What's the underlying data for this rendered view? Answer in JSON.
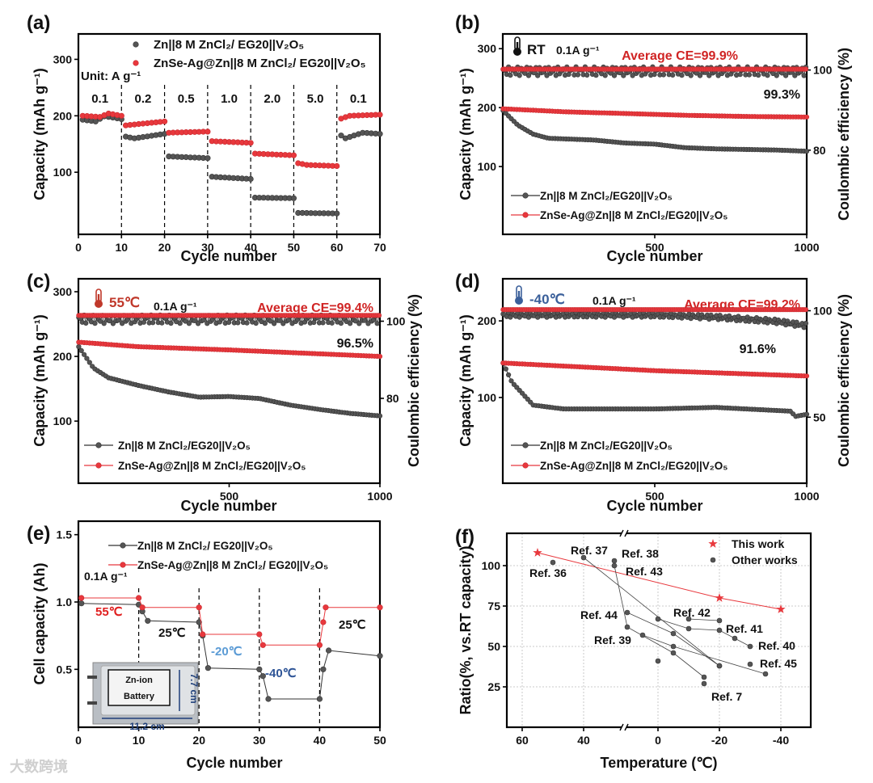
{
  "watermark": "大数跨境",
  "chart_data": [
    {
      "id": "a",
      "type": "scatter",
      "panel_label": "(a)",
      "xlabel": "Cycle number",
      "ylabel": "Capacity (mAh g⁻¹)",
      "xlim": [
        0,
        70
      ],
      "ylim": [
        -10,
        345
      ],
      "xticks": [
        0,
        10,
        20,
        30,
        40,
        50,
        60,
        70
      ],
      "yticks": [
        100,
        200,
        300
      ],
      "legend": "top",
      "unit_label": "Unit: A g⁻¹",
      "rate_labels": [
        "0.1",
        "0.2",
        "0.5",
        "1.0",
        "2.0",
        "5.0",
        "0.1"
      ],
      "rate_boundaries": [
        10,
        20,
        30,
        40,
        50,
        60
      ],
      "series": [
        {
          "name": "Zn||8 M ZnCl₂/ EG20||V₂O₅",
          "color": "#555555",
          "x": [
            1,
            4,
            6,
            8,
            10,
            11,
            13,
            20,
            21,
            30,
            31,
            40,
            41,
            50,
            51,
            60,
            61,
            62,
            66,
            70
          ],
          "y": [
            193,
            190,
            199,
            197,
            194,
            163,
            160,
            168,
            128,
            125,
            92,
            88,
            55,
            54,
            28,
            27,
            165,
            160,
            170,
            168
          ]
        },
        {
          "name": "ZnSe-Ag@Zn||8 M ZnCl₂/ EG20||V₂O₅",
          "color": "#e8383d",
          "x": [
            1,
            5,
            7,
            10,
            11,
            20,
            21,
            30,
            31,
            40,
            41,
            50,
            51,
            53,
            60,
            61,
            63,
            70
          ],
          "y": [
            200,
            198,
            204,
            200,
            183,
            190,
            170,
            172,
            155,
            152,
            133,
            130,
            116,
            113,
            111,
            195,
            200,
            202
          ]
        }
      ]
    },
    {
      "id": "b",
      "type": "scatter",
      "panel_label": "(b)",
      "xlabel": "Cycle number",
      "ylabel": "Capacity (mAh g⁻¹)",
      "y2label": "Coulombic efficiency (%)",
      "xlim": [
        0,
        1000
      ],
      "ylim": [
        -15,
        325
      ],
      "y2lim": [
        59,
        109
      ],
      "xticks": [
        500,
        1000
      ],
      "yticks": [
        100,
        200,
        300
      ],
      "y2ticks": [
        80,
        100
      ],
      "legend": "bottom-left",
      "temperature": "RT",
      "rate": "0.1A g⁻¹",
      "average_ce": "Average CE=99.9%",
      "retention": "99.3%",
      "series": [
        {
          "name": "Zn||8 M ZnCl₂/EG20||V₂O₅",
          "color": "#555555",
          "axis": "left",
          "x": [
            1,
            50,
            100,
            150,
            200,
            300,
            400,
            500,
            600,
            700,
            800,
            900,
            1000
          ],
          "y": [
            195,
            170,
            155,
            148,
            147,
            145,
            140,
            138,
            132,
            130,
            129,
            128,
            126
          ]
        },
        {
          "name": "ZnSe-Ag@Zn||8 M ZnCl₂/EG20||V₂O₅",
          "color": "#e8383d",
          "axis": "left",
          "x": [
            1,
            200,
            400,
            600,
            800,
            1000
          ],
          "y": [
            198,
            193,
            190,
            187,
            185,
            184
          ]
        },
        {
          "name": "CE gray",
          "color": "#555555",
          "axis": "right",
          "ce": true,
          "x": [
            1,
            1000
          ],
          "y": [
            99.7,
            99.7
          ]
        },
        {
          "name": "CE red",
          "color": "#e8383d",
          "axis": "right",
          "ce": true,
          "x": [
            1,
            1000
          ],
          "y": [
            100.2,
            100.2
          ]
        }
      ]
    },
    {
      "id": "c",
      "type": "scatter",
      "panel_label": "(c)",
      "xlabel": "Cycle number",
      "ylabel": "Capacity (mAh g⁻¹)",
      "y2label": "Coulombic efficiency (%)",
      "xlim": [
        0,
        1000
      ],
      "ylim": [
        4,
        320
      ],
      "y2lim": [
        58,
        111
      ],
      "xticks": [
        500,
        1000
      ],
      "yticks": [
        100,
        200,
        300
      ],
      "y2ticks": [
        80,
        100
      ],
      "legend": "bottom-left",
      "temperature": "55℃",
      "rate": "0.1A g⁻¹",
      "average_ce": "Average CE=99.4%",
      "retention": "96.5%",
      "series": [
        {
          "name": "Zn||8 M ZnCl₂/EG20||V₂O₅",
          "color": "#555555",
          "axis": "left",
          "x": [
            1,
            50,
            100,
            200,
            300,
            400,
            500,
            600,
            700,
            800,
            900,
            1000
          ],
          "y": [
            215,
            182,
            167,
            155,
            145,
            137,
            138,
            135,
            125,
            118,
            112,
            108
          ]
        },
        {
          "name": "ZnSe-Ag@Zn||8 M ZnCl₂/EG20||V₂O₅",
          "color": "#e8383d",
          "axis": "left",
          "x": [
            1,
            200,
            500,
            800,
            1000
          ],
          "y": [
            222,
            215,
            210,
            204,
            200
          ]
        },
        {
          "name": "CE gray",
          "color": "#555555",
          "axis": "right",
          "ce": true,
          "x": [
            1,
            1000
          ],
          "y": [
            100.5,
            100.5
          ]
        },
        {
          "name": "CE red",
          "color": "#e8383d",
          "axis": "right",
          "ce": true,
          "x": [
            1,
            1000
          ],
          "y": [
            101.5,
            101.5
          ]
        }
      ]
    },
    {
      "id": "d",
      "type": "scatter",
      "panel_label": "(d)",
      "xlabel": "Cycle number",
      "ylabel": "Capacity (mAh g⁻¹)",
      "y2label": "Coulombic efficiency (%)",
      "xlim": [
        0,
        1000
      ],
      "ylim": [
        -12,
        255
      ],
      "y2lim": [
        19,
        115
      ],
      "xticks": [
        500,
        1000
      ],
      "yticks": [
        100,
        200
      ],
      "y2ticks": [
        50,
        100
      ],
      "legend": "bottom-left",
      "temperature": "-40℃",
      "rate": "0.1A g⁻¹",
      "average_ce": "Average CE=99.2%",
      "retention": "91.6%",
      "series": [
        {
          "name": "Zn||8 M ZnCl₂/EG20||V₂O₅",
          "color": "#555555",
          "axis": "left",
          "x": [
            1,
            30,
            100,
            200,
            500,
            700,
            900,
            950,
            960,
            1000
          ],
          "y": [
            145,
            120,
            90,
            85,
            85,
            87,
            83,
            82,
            75,
            78
          ]
        },
        {
          "name": "ZnSe-Ag@Zn||8 M ZnCl₂/EG20||V₂O₅",
          "color": "#e8383d",
          "axis": "left",
          "x": [
            1,
            500,
            1000
          ],
          "y": [
            145,
            135,
            128
          ]
        },
        {
          "name": "CE gray",
          "color": "#555555",
          "axis": "right",
          "ce": true,
          "x": [
            1,
            500,
            700,
            900,
            1000
          ],
          "y": [
            98,
            98,
            97,
            95,
            93
          ]
        },
        {
          "name": "CE red",
          "color": "#e8383d",
          "axis": "right",
          "ce": true,
          "x": [
            1,
            1000
          ],
          "y": [
            100.5,
            100.5
          ]
        }
      ]
    },
    {
      "id": "e",
      "type": "line",
      "panel_label": "(e)",
      "xlabel": "Cycle number",
      "ylabel": "Cell capacity (Ah)",
      "xlim": [
        0,
        50
      ],
      "ylim": [
        0.07,
        1.6
      ],
      "xticks": [
        0,
        10,
        20,
        30,
        40,
        50
      ],
      "yticks": [
        0.5,
        1.0,
        1.5
      ],
      "legend": "top",
      "rate": "0.1A g⁻¹",
      "boundaries": [
        10,
        20,
        30,
        40
      ],
      "temperature_labels": [
        {
          "text": "55℃",
          "color": "#e02020"
        },
        {
          "text": "25℃",
          "color": "#111111"
        },
        {
          "text": "-20℃",
          "color": "#5b9bd5"
        },
        {
          "text": "-40℃",
          "color": "#2f5597"
        },
        {
          "text": "25℃",
          "color": "#111111"
        }
      ],
      "inset": {
        "label": "Zn-ion Battery",
        "width": "11.2 cm",
        "height": "7.7 cm"
      },
      "series": [
        {
          "name": "Zn||8 M ZnCl₂/ EG20||V₂O₅",
          "color": "#555555",
          "x": [
            0.5,
            10,
            10.6,
            11.5,
            20,
            20.6,
            21.5,
            30,
            30.6,
            31.5,
            40,
            40.6,
            41.5,
            50
          ],
          "y": [
            0.99,
            0.98,
            0.93,
            0.86,
            0.85,
            0.75,
            0.51,
            0.5,
            0.45,
            0.28,
            0.28,
            0.5,
            0.64,
            0.6
          ]
        },
        {
          "name": "ZnSe-Ag@Zn||8 M ZnCl₂/ EG20||V₂O₅",
          "color": "#e8383d",
          "x": [
            0.5,
            10,
            10.6,
            20,
            20.6,
            30,
            30.6,
            40,
            40.6,
            41,
            50
          ],
          "y": [
            1.03,
            1.03,
            0.96,
            0.96,
            0.76,
            0.76,
            0.68,
            0.68,
            0.85,
            0.96,
            0.96
          ]
        }
      ]
    },
    {
      "id": "f",
      "type": "scatter",
      "panel_label": "(f)",
      "xlabel": "Temperature (℃)",
      "ylabel": "Ratio(%, vs.RT capacity)",
      "xlim": [
        65,
        -50
      ],
      "ylim": [
        0,
        120
      ],
      "x_axis_break": [
        27,
        11
      ],
      "xticks": [
        60,
        40,
        0,
        -20,
        -40
      ],
      "yticks": [
        25,
        50,
        75,
        100
      ],
      "grid": true,
      "legend": "top-right",
      "series": [
        {
          "name": "This work",
          "color": "#e8383d",
          "marker": "star",
          "x": [
            55,
            -20,
            -40
          ],
          "y": [
            108,
            80,
            73
          ]
        },
        {
          "name": "Other works",
          "color": "#555555",
          "marker": "circle",
          "groups": [
            {
              "label": "Ref. 36",
              "x": [
                50
              ],
              "y": [
                102
              ]
            },
            {
              "label": "Ref. 37",
              "x": [
                40,
                -20
              ],
              "y": [
                105,
                38
              ]
            },
            {
              "label": "Ref. 38",
              "x": [
                30
              ],
              "y": [
                103
              ]
            },
            {
              "label": "Ref. 43",
              "x": [
                30,
                10,
                -5,
                -15
              ],
              "y": [
                100,
                62,
                46,
                31
              ]
            },
            {
              "label": "Ref. 44",
              "x": [
                10,
                -5,
                -20
              ],
              "y": [
                71,
                58,
                38
              ]
            },
            {
              "label": "Ref. 39",
              "x": [
                5,
                -5,
                -35
              ],
              "y": [
                57,
                50,
                33
              ]
            },
            {
              "label": "Ref. 42",
              "x": [
                0,
                -10,
                -20,
                -25,
                -30
              ],
              "y": [
                67,
                61,
                60,
                55,
                50
              ]
            },
            {
              "label": "Ref. 41",
              "x": [
                -10,
                -20
              ],
              "y": [
                67,
                66
              ]
            },
            {
              "label": "Ref. 40",
              "x": [
                0
              ],
              "y": [
                41
              ]
            },
            {
              "label": "Ref. 45",
              "x": [
                -30
              ],
              "y": [
                39
              ]
            },
            {
              "label": "Ref. 7",
              "x": [
                -15
              ],
              "y": [
                27
              ]
            }
          ]
        }
      ]
    }
  ]
}
